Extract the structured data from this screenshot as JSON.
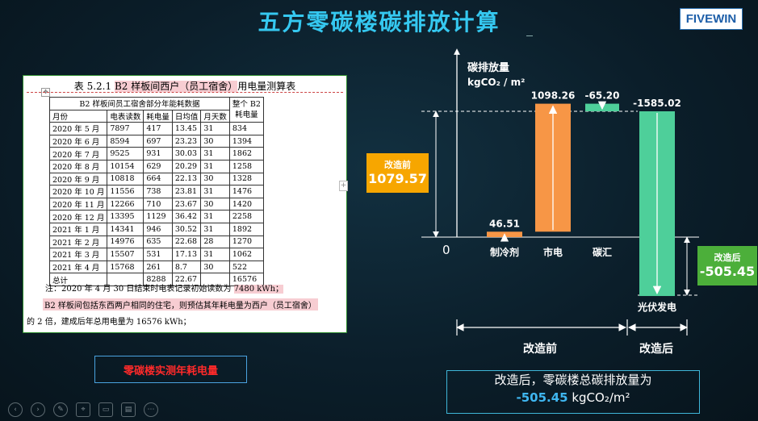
{
  "slide": {
    "title": "五方零碳楼碳排放计算",
    "logo": "FIVEWIN"
  },
  "doc": {
    "caption_pre": "表 5.2.1 ",
    "caption_hl": "B2 样板间西户（员工宿舍）",
    "caption_post": "用电量测算表",
    "group_header": "B2 样板间员工宿舍部分年能耗数据",
    "whole_header_l1": "整个 B2",
    "whole_header_l2": "耗电量",
    "columns": [
      "月份",
      "电表读数",
      "耗电量",
      "日均值",
      "月天数"
    ],
    "rows": [
      [
        "2020 年 5 月",
        "7897",
        "417",
        "13.45",
        "31",
        "834"
      ],
      [
        "2020 年 6 月",
        "8594",
        "697",
        "23.23",
        "30",
        "1394"
      ],
      [
        "2020 年 7 月",
        "9525",
        "931",
        "30.03",
        "31",
        "1862"
      ],
      [
        "2020 年 8 月",
        "10154",
        "629",
        "20.29",
        "31",
        "1258"
      ],
      [
        "2020 年 9 月",
        "10818",
        "664",
        "22.13",
        "30",
        "1328"
      ],
      [
        "2020 年 10 月",
        "11556",
        "738",
        "23.81",
        "31",
        "1476"
      ],
      [
        "2020 年 11 月",
        "12266",
        "710",
        "23.67",
        "30",
        "1420"
      ],
      [
        "2020 年 12 月",
        "13395",
        "1129",
        "36.42",
        "31",
        "2258"
      ],
      [
        "2021 年 1 月",
        "14341",
        "946",
        "30.52",
        "31",
        "1892"
      ],
      [
        "2021 年 2 月",
        "14976",
        "635",
        "22.68",
        "28",
        "1270"
      ],
      [
        "2021 年 3 月",
        "15507",
        "531",
        "17.13",
        "31",
        "1062"
      ],
      [
        "2021 年 4 月",
        "15768",
        "261",
        "8.7",
        "30",
        "522"
      ],
      [
        "总计",
        "",
        "8288",
        "22.67",
        "",
        "16576"
      ]
    ],
    "note_pre": "注：2020 年 4 月 30 日结束时电表记录初始读数为 ",
    "note_hl": "7480 kWh；",
    "para1": "B2 样板间包括东西两户相同的住宅，则预估其年耗电量为西户（员工宿舍）",
    "para2": "的 2 倍，建成后年总用电量为 16576 kWh；"
  },
  "red_label": "零碳楼实测年耗电量",
  "chart_data": {
    "type": "bar",
    "subtype": "waterfall",
    "ylabel_l1": "碳排放量",
    "ylabel_l2": "kgCO₂ / m²",
    "zero_label": "0",
    "categories": [
      "制冷剂",
      "市电",
      "碳汇",
      "光伏发电"
    ],
    "values": [
      46.51,
      1098.26,
      -65.2,
      -1585.02
    ],
    "value_labels": [
      "46.51",
      "1098.26",
      "-65.20",
      "-1585.02"
    ],
    "group_labels": [
      "改造前",
      "改造后"
    ],
    "before_label": "改造前",
    "before_value": "1079.57",
    "after_label": "改造后",
    "after_value": "-505.45",
    "colors": {
      "orange": "#f79646",
      "teal": "#4ecf9a",
      "before_box": "#f7a600",
      "after_box": "#4caf3a"
    }
  },
  "summary": {
    "line1": "改造后，零碳楼总碳排放量为",
    "value": "-505.45",
    "unit": " kgCO₂/m²"
  },
  "toolbar": [
    "prev-icon",
    "next-icon",
    "pen-icon",
    "pointer-icon",
    "screen-icon",
    "comment-icon",
    "more-icon"
  ]
}
